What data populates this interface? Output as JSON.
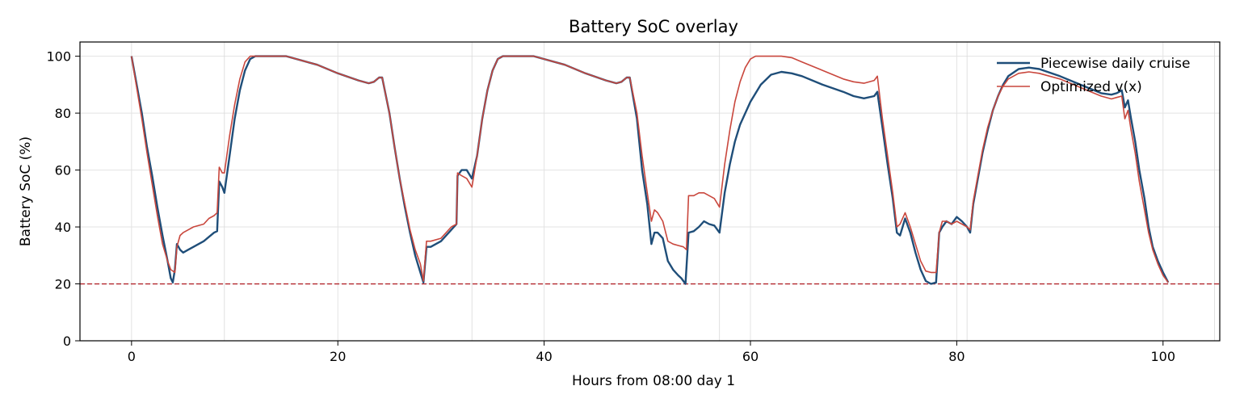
{
  "chart_data": {
    "type": "line",
    "title": "Battery SoC overlay",
    "xlabel": "Hours from 08:00 day 1",
    "ylabel": "Battery SoC (%)",
    "xlim": [
      -5,
      105.5
    ],
    "ylim": [
      0,
      105
    ],
    "xticks": [
      0,
      20,
      40,
      60,
      80,
      100
    ],
    "yticks": [
      0,
      20,
      40,
      60,
      80,
      100
    ],
    "grid": true,
    "legend_position": "top-right",
    "vertical_day_lines": [
      9,
      33,
      57,
      81,
      105
    ],
    "reference_line": {
      "y": 20,
      "style": "dashed",
      "color": "#b2272e"
    },
    "series": [
      {
        "name": "Piecewise daily cruise",
        "color": "#1f4e79",
        "points": [
          [
            0,
            100
          ],
          [
            0.5,
            90
          ],
          [
            1,
            80
          ],
          [
            1.5,
            68
          ],
          [
            2,
            58
          ],
          [
            2.5,
            47
          ],
          [
            3,
            37
          ],
          [
            3.5,
            28
          ],
          [
            3.8,
            22
          ],
          [
            4,
            20.5
          ],
          [
            4.2,
            25
          ],
          [
            4.4,
            34
          ],
          [
            4.7,
            32
          ],
          [
            5,
            31
          ],
          [
            5.5,
            32
          ],
          [
            6,
            33
          ],
          [
            7,
            35
          ],
          [
            8,
            38
          ],
          [
            8.3,
            38.5
          ],
          [
            8.5,
            56
          ],
          [
            8.8,
            54
          ],
          [
            9,
            52
          ],
          [
            9.5,
            65
          ],
          [
            10,
            78
          ],
          [
            10.5,
            88
          ],
          [
            11,
            95
          ],
          [
            11.5,
            99
          ],
          [
            12,
            100
          ],
          [
            15,
            100
          ],
          [
            18,
            97
          ],
          [
            20,
            94
          ],
          [
            22,
            91.5
          ],
          [
            23,
            90.5
          ],
          [
            23.5,
            91
          ],
          [
            24,
            92.5
          ],
          [
            24.3,
            92.5
          ],
          [
            25,
            80
          ],
          [
            25.5,
            68
          ],
          [
            26,
            57
          ],
          [
            26.5,
            47
          ],
          [
            27,
            38
          ],
          [
            27.5,
            30
          ],
          [
            28,
            24
          ],
          [
            28.3,
            20.5
          ],
          [
            28.6,
            33
          ],
          [
            29,
            33
          ],
          [
            30,
            35
          ],
          [
            31,
            39
          ],
          [
            31.5,
            41
          ],
          [
            31.6,
            58
          ],
          [
            32,
            60
          ],
          [
            32.5,
            60
          ],
          [
            33,
            57
          ],
          [
            33.5,
            65
          ],
          [
            34,
            78
          ],
          [
            34.5,
            88
          ],
          [
            35,
            95
          ],
          [
            35.5,
            99
          ],
          [
            36,
            100
          ],
          [
            39,
            100
          ],
          [
            42,
            97
          ],
          [
            44,
            94
          ],
          [
            46,
            91.5
          ],
          [
            47,
            90.5
          ],
          [
            47.5,
            91
          ],
          [
            48,
            92.5
          ],
          [
            48.3,
            92.5
          ],
          [
            49,
            78
          ],
          [
            49.5,
            60
          ],
          [
            50,
            48
          ],
          [
            50.4,
            34
          ],
          [
            50.7,
            38
          ],
          [
            51,
            38
          ],
          [
            51.5,
            36
          ],
          [
            52,
            28
          ],
          [
            52.5,
            25
          ],
          [
            53,
            23
          ],
          [
            53.3,
            22
          ],
          [
            53.7,
            20
          ],
          [
            54,
            38
          ],
          [
            54.5,
            38.5
          ],
          [
            55,
            40
          ],
          [
            55.5,
            42
          ],
          [
            56,
            41
          ],
          [
            56.5,
            40.5
          ],
          [
            57,
            38
          ],
          [
            57.5,
            52
          ],
          [
            58,
            62
          ],
          [
            58.5,
            70
          ],
          [
            59,
            76
          ],
          [
            60,
            84
          ],
          [
            61,
            90
          ],
          [
            62,
            93.5
          ],
          [
            63,
            94.5
          ],
          [
            64,
            94
          ],
          [
            65,
            93
          ],
          [
            67,
            90
          ],
          [
            69,
            87.5
          ],
          [
            70,
            86
          ],
          [
            71,
            85.2
          ],
          [
            72,
            86
          ],
          [
            72.3,
            87.5
          ],
          [
            72.8,
            75
          ],
          [
            73.3,
            62
          ],
          [
            73.8,
            50
          ],
          [
            74.2,
            38
          ],
          [
            74.5,
            37
          ],
          [
            75,
            43
          ],
          [
            75.5,
            38
          ],
          [
            76,
            31
          ],
          [
            76.5,
            25
          ],
          [
            77,
            21
          ],
          [
            77.5,
            20
          ],
          [
            78,
            20.5
          ],
          [
            78.3,
            38
          ],
          [
            78.6,
            40
          ],
          [
            79,
            42
          ],
          [
            79.5,
            41
          ],
          [
            80,
            43.5
          ],
          [
            80.5,
            42
          ],
          [
            81,
            40
          ],
          [
            81.3,
            38
          ],
          [
            81.6,
            48
          ],
          [
            82,
            56
          ],
          [
            82.5,
            66
          ],
          [
            83,
            74
          ],
          [
            83.5,
            81
          ],
          [
            84,
            86
          ],
          [
            84.5,
            90
          ],
          [
            85,
            93
          ],
          [
            86,
            95.5
          ],
          [
            87,
            96
          ],
          [
            88,
            95.5
          ],
          [
            90,
            93
          ],
          [
            92,
            90
          ],
          [
            93,
            88.5
          ],
          [
            94,
            87
          ],
          [
            95,
            86.5
          ],
          [
            95.5,
            87
          ],
          [
            96,
            88
          ],
          [
            96.3,
            82
          ],
          [
            96.6,
            84.5
          ],
          [
            96.9,
            78
          ],
          [
            97.3,
            70
          ],
          [
            97.7,
            60
          ],
          [
            98.2,
            50
          ],
          [
            98.6,
            40
          ],
          [
            99,
            33
          ],
          [
            99.5,
            28
          ],
          [
            100,
            24
          ],
          [
            100.5,
            20.5
          ]
        ]
      },
      {
        "name": "Optimized v(x)",
        "color": "#c9473d",
        "points": [
          [
            0,
            100
          ],
          [
            0.5,
            89
          ],
          [
            1,
            78
          ],
          [
            1.5,
            66
          ],
          [
            2,
            55
          ],
          [
            2.5,
            44
          ],
          [
            3,
            34
          ],
          [
            3.5,
            28
          ],
          [
            3.8,
            25
          ],
          [
            4.2,
            24
          ],
          [
            4.4,
            33
          ],
          [
            4.7,
            37
          ],
          [
            5,
            38
          ],
          [
            5.5,
            39
          ],
          [
            6,
            40
          ],
          [
            7,
            41
          ],
          [
            7.5,
            43
          ],
          [
            8,
            44
          ],
          [
            8.3,
            45
          ],
          [
            8.5,
            61
          ],
          [
            8.8,
            59
          ],
          [
            9,
            59
          ],
          [
            9.5,
            72
          ],
          [
            10,
            83
          ],
          [
            10.5,
            92
          ],
          [
            11,
            98
          ],
          [
            11.5,
            100
          ],
          [
            15,
            100
          ],
          [
            18,
            97
          ],
          [
            20,
            94
          ],
          [
            22,
            91.5
          ],
          [
            23,
            90.5
          ],
          [
            23.5,
            91
          ],
          [
            24,
            92.5
          ],
          [
            24.3,
            92.5
          ],
          [
            25,
            80
          ],
          [
            25.5,
            68
          ],
          [
            26,
            57
          ],
          [
            26.5,
            48
          ],
          [
            27,
            39
          ],
          [
            27.5,
            32
          ],
          [
            28,
            27
          ],
          [
            28.3,
            21
          ],
          [
            28.6,
            35
          ],
          [
            29,
            35
          ],
          [
            30,
            36
          ],
          [
            31,
            40
          ],
          [
            31.5,
            41
          ],
          [
            31.6,
            59
          ],
          [
            32,
            58
          ],
          [
            32.5,
            57
          ],
          [
            33,
            54
          ],
          [
            33.5,
            65
          ],
          [
            34,
            78
          ],
          [
            34.5,
            88
          ],
          [
            35,
            95
          ],
          [
            35.5,
            99
          ],
          [
            36,
            100
          ],
          [
            39,
            100
          ],
          [
            42,
            97
          ],
          [
            44,
            94
          ],
          [
            46,
            91.5
          ],
          [
            47,
            90.5
          ],
          [
            47.5,
            91
          ],
          [
            48,
            92.5
          ],
          [
            48.3,
            92.5
          ],
          [
            49,
            80
          ],
          [
            49.5,
            65
          ],
          [
            50,
            52
          ],
          [
            50.4,
            42
          ],
          [
            50.7,
            46
          ],
          [
            51,
            45
          ],
          [
            51.5,
            42
          ],
          [
            52,
            35
          ],
          [
            52.5,
            34
          ],
          [
            53,
            33.5
          ],
          [
            53.5,
            33
          ],
          [
            53.8,
            32
          ],
          [
            54,
            51
          ],
          [
            54.5,
            51
          ],
          [
            55,
            52
          ],
          [
            55.5,
            52
          ],
          [
            56,
            51
          ],
          [
            56.5,
            50
          ],
          [
            57,
            47
          ],
          [
            57.5,
            62
          ],
          [
            58,
            74
          ],
          [
            58.5,
            84
          ],
          [
            59,
            91
          ],
          [
            59.5,
            96
          ],
          [
            60,
            99
          ],
          [
            60.5,
            100
          ],
          [
            63,
            100
          ],
          [
            64,
            99.5
          ],
          [
            65,
            98
          ],
          [
            67,
            95
          ],
          [
            69,
            92
          ],
          [
            70,
            91
          ],
          [
            71,
            90.5
          ],
          [
            72,
            91.5
          ],
          [
            72.3,
            93
          ],
          [
            72.8,
            78
          ],
          [
            73.3,
            65
          ],
          [
            73.8,
            52
          ],
          [
            74.2,
            40
          ],
          [
            74.5,
            41
          ],
          [
            75,
            45
          ],
          [
            75.5,
            40
          ],
          [
            76,
            34
          ],
          [
            76.5,
            28
          ],
          [
            77,
            24.5
          ],
          [
            77.5,
            24
          ],
          [
            78,
            24
          ],
          [
            78.3,
            38
          ],
          [
            78.6,
            42
          ],
          [
            79,
            42
          ],
          [
            79.5,
            41
          ],
          [
            80,
            42
          ],
          [
            80.5,
            41
          ],
          [
            81,
            40
          ],
          [
            81.3,
            39
          ],
          [
            81.6,
            49
          ],
          [
            82,
            57
          ],
          [
            82.5,
            67
          ],
          [
            83,
            75
          ],
          [
            83.5,
            81
          ],
          [
            84,
            86
          ],
          [
            84.5,
            89.5
          ],
          [
            85,
            92
          ],
          [
            86,
            94
          ],
          [
            87,
            94.5
          ],
          [
            88,
            94
          ],
          [
            90,
            92
          ],
          [
            92,
            89
          ],
          [
            93,
            87.5
          ],
          [
            94,
            86
          ],
          [
            95,
            85
          ],
          [
            95.5,
            85.5
          ],
          [
            96,
            86
          ],
          [
            96.3,
            78
          ],
          [
            96.6,
            81
          ],
          [
            96.9,
            74
          ],
          [
            97.3,
            66
          ],
          [
            97.7,
            56
          ],
          [
            98.2,
            46
          ],
          [
            98.6,
            38
          ],
          [
            99,
            32
          ],
          [
            99.5,
            27
          ],
          [
            100,
            23
          ],
          [
            100.5,
            20.5
          ]
        ]
      }
    ]
  }
}
